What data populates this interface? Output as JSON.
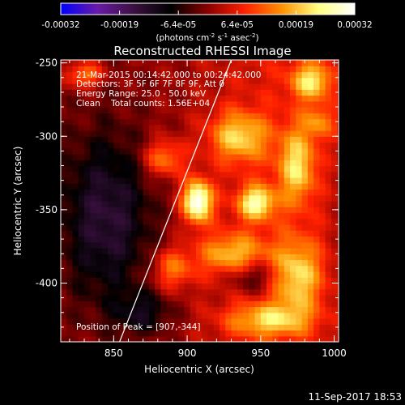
{
  "chart_data": {
    "type": "heatmap",
    "title": "Reconstructed RHESSI Image",
    "xlabel": "Heliocentric X (arcsec)",
    "ylabel": "Heliocentric Y (arcsec)",
    "xlim": [
      814,
      1003
    ],
    "ylim": [
      -440,
      -248
    ],
    "x_ticks": [
      850,
      900,
      950,
      1000
    ],
    "y_ticks": [
      -250,
      -300,
      -350,
      -400
    ],
    "colorbar": {
      "range": [
        -0.00032,
        0.00032
      ],
      "ticks": [
        "-0.00032",
        "-0.00019",
        "-6.4e-05",
        "6.4e-05",
        "0.00019",
        "0.00032"
      ],
      "label": "(photons cm",
      "label_sup1": "-2",
      "label_mid1": " s",
      "label_sup2": "-1",
      "label_mid2": " asec",
      "label_sup3": "-2",
      "label_end": ")",
      "colormap": [
        "#0000ff",
        "#6a1aa8",
        "#3a1040",
        "#000000",
        "#8a0000",
        "#ff2000",
        "#ff9000",
        "#ffff80",
        "#ffffff"
      ]
    },
    "annotations": {
      "time": "21-Mar-2015 00:14:42.000 to 00:24:42.000",
      "detectors": "Detectors: 3F 5F 6F 7F 8F 9F, Att 0",
      "energy": "Energy Range: 25.0 - 50.0 keV",
      "clean": "Clean    Total counts: 1.56E+04",
      "peak": "Position of Peak = [907,-344]"
    },
    "peak": {
      "x": 907,
      "y": -344,
      "value": 0.00032
    },
    "limb_line": {
      "x": [
        854,
        930
      ],
      "y": [
        -440,
        -248
      ]
    },
    "sources": [
      {
        "x": 907,
        "y": -344,
        "amp": 1.0,
        "sx": 7,
        "sy": 10
      },
      {
        "x": 884,
        "y": -315,
        "amp": 0.45,
        "sx": 10,
        "sy": 9
      },
      {
        "x": 947,
        "y": -345,
        "amp": 0.7,
        "sx": 9,
        "sy": 8
      },
      {
        "x": 935,
        "y": -300,
        "amp": 0.55,
        "sx": 14,
        "sy": 12
      },
      {
        "x": 985,
        "y": -262,
        "amp": 0.6,
        "sx": 10,
        "sy": 9
      },
      {
        "x": 975,
        "y": -320,
        "amp": 0.55,
        "sx": 9,
        "sy": 18
      },
      {
        "x": 930,
        "y": -380,
        "amp": 0.5,
        "sx": 16,
        "sy": 10
      },
      {
        "x": 975,
        "y": -395,
        "amp": 0.55,
        "sx": 12,
        "sy": 18
      },
      {
        "x": 955,
        "y": -425,
        "amp": 0.5,
        "sx": 20,
        "sy": 8
      },
      {
        "x": 890,
        "y": -390,
        "amp": 0.4,
        "sx": 10,
        "sy": 10
      },
      {
        "x": 830,
        "y": -258,
        "amp": 0.45,
        "sx": 9,
        "sy": 6
      },
      {
        "x": 990,
        "y": -290,
        "amp": 0.35,
        "sx": 8,
        "sy": 8
      }
    ],
    "negative_regions": [
      {
        "x": 845,
        "y": -355,
        "amp": -0.45,
        "sx": 22,
        "sy": 40
      },
      {
        "x": 945,
        "y": -395,
        "amp": -0.35,
        "sx": 12,
        "sy": 8
      },
      {
        "x": 870,
        "y": -420,
        "amp": -0.3,
        "sx": 14,
        "sy": 10
      }
    ]
  },
  "footer": {
    "timestamp": "11-Sep-2017 18:53"
  }
}
